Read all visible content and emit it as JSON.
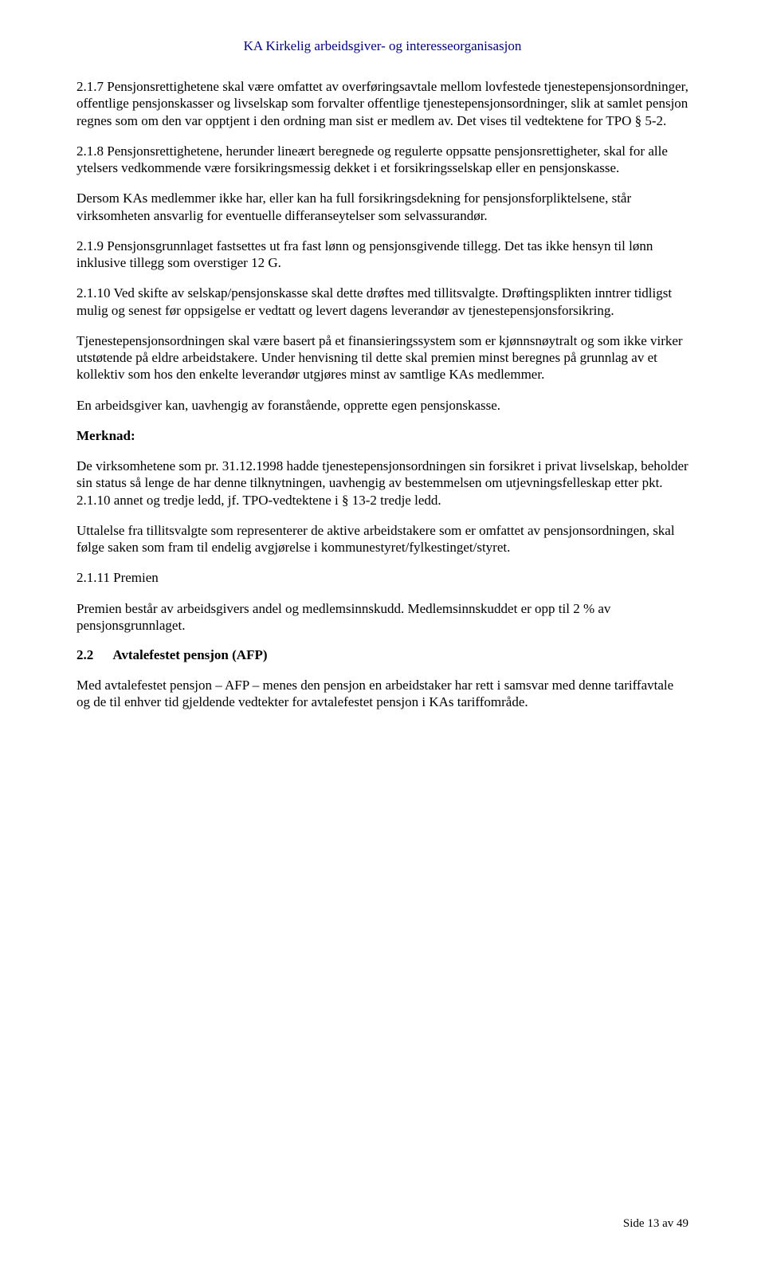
{
  "header": "KA Kirkelig arbeidsgiver- og interesseorganisasjon",
  "p1": "2.1.7   Pensjonsrettighetene skal være omfattet av overføringsavtale mellom lovfestede tjenestepensjonsordninger, offentlige pensjonskasser og livselskap som forvalter offentlige tjenestepensjonsordninger, slik at samlet pensjon regnes som om den var opptjent i den ordning man sist er medlem av. Det vises til vedtektene for TPO § 5-2.",
  "p2": "2.1.8   Pensjonsrettighetene, herunder lineært beregnede og regulerte oppsatte pensjonsrettigheter, skal for alle ytelsers vedkommende være forsikringsmessig dekket i et forsikringsselskap eller en pensjonskasse.",
  "p3": "Dersom KAs medlemmer ikke har, eller kan ha full forsikringsdekning for pensjonsforpliktelsene, står virksomheten ansvarlig for eventuelle differanseytelser som selvassurandør.",
  "p4": "2.1.9   Pensjonsgrunnlaget fastsettes ut fra fast lønn og pensjonsgivende tillegg. Det tas ikke hensyn til lønn inklusive tillegg som overstiger 12 G.",
  "p5": "2.1.10  Ved skifte av selskap/pensjonskasse skal dette drøftes med tillitsvalgte. Drøftingsplikten inntrer tidligst mulig og senest før oppsigelse er vedtatt og levert dagens leverandør av tjenestepensjonsforsikring.",
  "p6": "Tjenestepensjonsordningen skal være basert på et finansieringssystem som er kjønnsnøytralt og som ikke virker utstøtende på eldre arbeidstakere. Under henvisning til dette skal premien minst beregnes på grunnlag av et kollektiv som hos den enkelte leverandør utgjøres minst av samtlige KAs medlemmer.",
  "p7": "En arbeidsgiver kan, uavhengig av foranstående, opprette egen pensjonskasse.",
  "merknad_label": "Merknad:",
  "p8": "De virksomhetene som pr. 31.12.1998 hadde tjenestepensjonsordningen sin forsikret i privat livselskap, beholder sin status så lenge de har denne tilknytningen, uavhengig av bestemmelsen om utjevningsfelleskap etter pkt. 2.1.10 annet og tredje ledd, jf. TPO-vedtektene i § 13-2 tredje ledd.",
  "p9": "Uttalelse fra tillitsvalgte som representerer de aktive arbeidstakere som er omfattet av pensjonsordningen, skal følge saken som fram til endelig avgjørelse i kommunestyret/fylkestinget/styret.",
  "p10": "2.1.11  Premien",
  "p11": "Premien består av arbeidsgivers andel og medlemsinnskudd. Medlemsinnskuddet er opp til 2 % av pensjonsgrunnlaget.",
  "section_num": "2.2",
  "section_title": "Avtalefestet pensjon (AFP)",
  "p12": "Med avtalefestet pensjon – AFP – menes den pensjon en arbeidstaker har rett i samsvar med denne tariffavtale og de til enhver tid gjeldende vedtekter for avtalefestet pensjon i KAs tariffområde.",
  "footer": "Side 13 av 49"
}
